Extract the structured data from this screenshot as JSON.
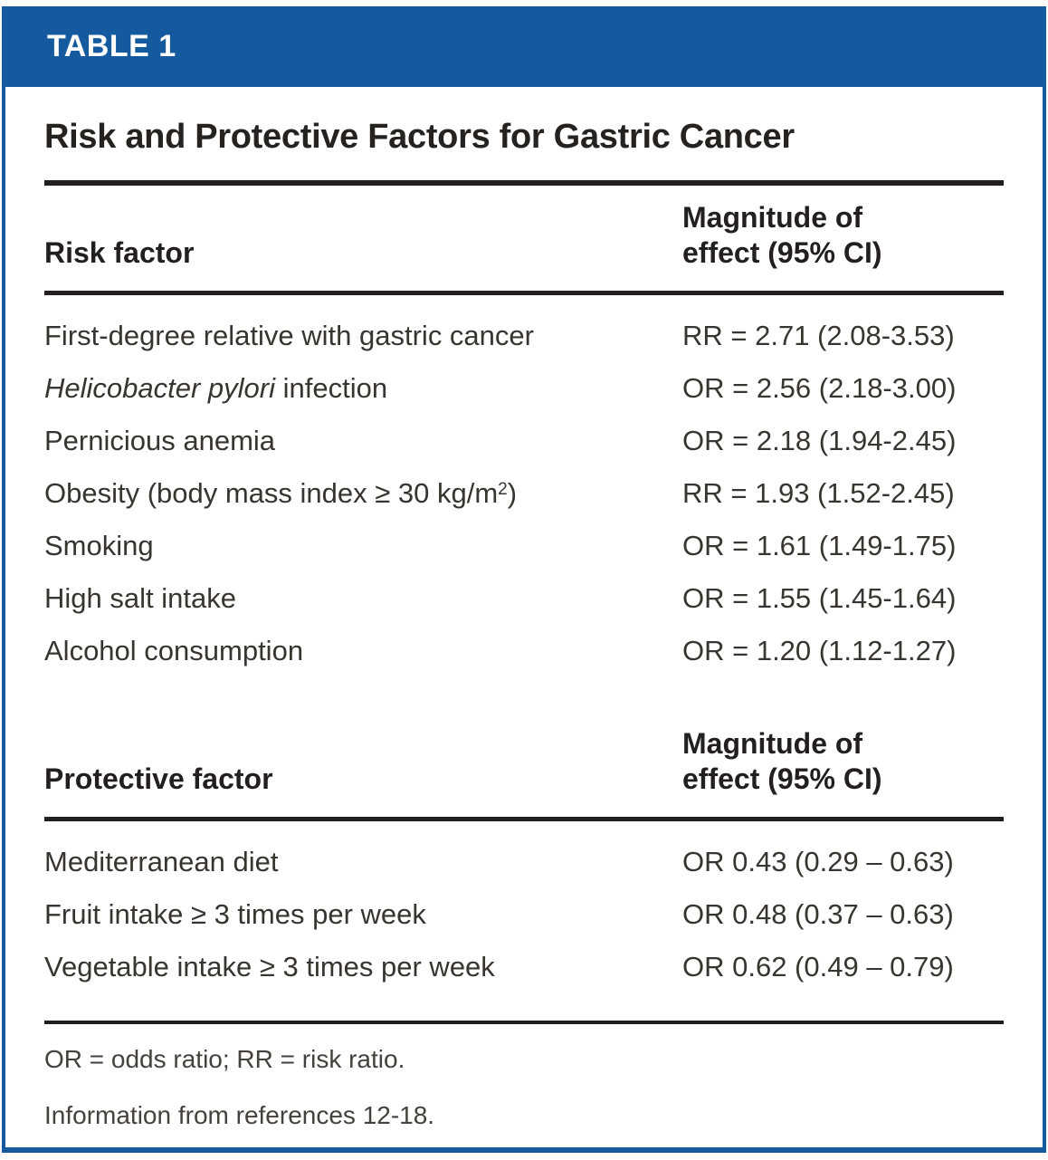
{
  "banner": {
    "label": "TABLE 1"
  },
  "title": "Risk and Protective Factors for Gastric Cancer",
  "colors": {
    "banner_blue": "#155a9f",
    "rule_dark": "#231f20"
  },
  "sections": [
    {
      "factor_header": "Risk factor",
      "effect_header": "Magnitude of effect (95% CI)",
      "rows": [
        {
          "label": [
            {
              "t": "First-degree relative with gastric cancer"
            }
          ],
          "value": "RR = 2.71 (2.08-3.53)"
        },
        {
          "label": [
            {
              "t": "Helicobacter pylori",
              "i": true
            },
            {
              "t": " infection"
            }
          ],
          "value": "OR = 2.56 (2.18-3.00)"
        },
        {
          "label": [
            {
              "t": "Pernicious anemia"
            }
          ],
          "value": "OR = 2.18 (1.94-2.45)"
        },
        {
          "label": [
            {
              "t": "Obesity (body mass index ≥ 30 kg/m"
            },
            {
              "t": "2",
              "sup": true
            },
            {
              "t": ")"
            }
          ],
          "value": "RR = 1.93 (1.52-2.45)"
        },
        {
          "label": [
            {
              "t": "Smoking"
            }
          ],
          "value": "OR = 1.61 (1.49-1.75)"
        },
        {
          "label": [
            {
              "t": "High salt intake"
            }
          ],
          "value": "OR = 1.55 (1.45-1.64)"
        },
        {
          "label": [
            {
              "t": "Alcohol consumption"
            }
          ],
          "value": "OR = 1.20 (1.12-1.27)"
        }
      ]
    },
    {
      "factor_header": "Protective factor",
      "effect_header": "Magnitude of effect (95% CI)",
      "rows": [
        {
          "label": [
            {
              "t": "Mediterranean diet"
            }
          ],
          "value": "OR 0.43 (0.29 – 0.63)"
        },
        {
          "label": [
            {
              "t": "Fruit intake ≥ 3 times per week"
            }
          ],
          "value": "OR 0.48 (0.37 – 0.63)"
        },
        {
          "label": [
            {
              "t": "Vegetable intake ≥ 3 times per week"
            }
          ],
          "value": "OR 0.62 (0.49 – 0.79)"
        }
      ]
    }
  ],
  "footnotes": [
    "OR = odds ratio; RR = risk ratio.",
    "Information from references 12-18."
  ]
}
